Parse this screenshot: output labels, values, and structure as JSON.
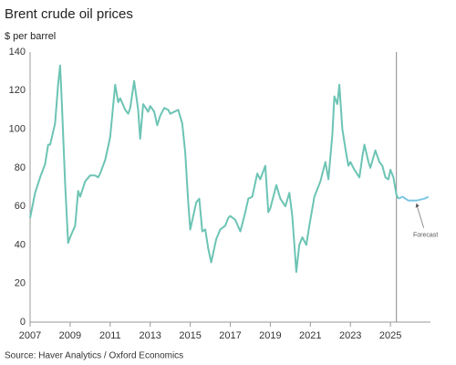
{
  "chart_data": {
    "type": "line",
    "title": "Brent crude oil prices",
    "subtitle": "$ per barrel",
    "source": "Source: Haver Analytics / Oxford Economics",
    "annotation": "Forecast",
    "xlim": [
      2007,
      2027
    ],
    "xticks": [
      2007,
      2009,
      2011,
      2013,
      2015,
      2017,
      2019,
      2021,
      2023,
      2025
    ],
    "ylim": [
      0,
      140
    ],
    "yticks": [
      0,
      20,
      40,
      60,
      80,
      100,
      120,
      140
    ],
    "grid": false,
    "vline_x": 2025.3,
    "series": [
      {
        "color": "#6cc4b4",
        "x": [
          2007.0,
          2007.25,
          2007.5,
          2007.75,
          2007.9,
          2008.0,
          2008.25,
          2008.4,
          2008.5,
          2008.58,
          2008.75,
          2008.9,
          2009.0,
          2009.25,
          2009.4,
          2009.5,
          2009.75,
          2010.0,
          2010.25,
          2010.4,
          2010.5,
          2010.75,
          2010.9,
          2011.0,
          2011.25,
          2011.4,
          2011.5,
          2011.75,
          2011.9,
          2012.0,
          2012.2,
          2012.4,
          2012.5,
          2012.65,
          2012.9,
          2013.0,
          2013.2,
          2013.35,
          2013.5,
          2013.7,
          2013.9,
          2014.0,
          2014.4,
          2014.6,
          2014.75,
          2014.9,
          2015.0,
          2015.3,
          2015.45,
          2015.6,
          2015.75,
          2015.9,
          2016.05,
          2016.3,
          2016.5,
          2016.75,
          2016.9,
          2017.0,
          2017.25,
          2017.5,
          2017.75,
          2017.9,
          2018.1,
          2018.35,
          2018.5,
          2018.75,
          2018.9,
          2019.0,
          2019.3,
          2019.5,
          2019.75,
          2019.95,
          2020.1,
          2020.3,
          2020.45,
          2020.6,
          2020.8,
          2020.95,
          2021.2,
          2021.5,
          2021.75,
          2021.9,
          2022.1,
          2022.2,
          2022.35,
          2022.45,
          2022.6,
          2022.75,
          2022.9,
          2023.0,
          2023.2,
          2023.45,
          2023.6,
          2023.7,
          2023.9,
          2024.0,
          2024.25,
          2024.45,
          2024.6,
          2024.75,
          2024.9,
          2025.0,
          2025.15,
          2025.3,
          2025.4
        ],
        "values": [
          54,
          67,
          75,
          82,
          92,
          92,
          103,
          123,
          133,
          115,
          72,
          41,
          44,
          50,
          68,
          65,
          73,
          76,
          76,
          75,
          77,
          84,
          91,
          96,
          123,
          114,
          116,
          110,
          108,
          111,
          125,
          110,
          95,
          113,
          109,
          112,
          109,
          102,
          107,
          111,
          110,
          108,
          110,
          103,
          88,
          62,
          48,
          62,
          64,
          47,
          48,
          38,
          31,
          43,
          48,
          50,
          54,
          55,
          53,
          47,
          57,
          64,
          65,
          77,
          74,
          81,
          57,
          59,
          71,
          64,
          60,
          67,
          55,
          26,
          40,
          44,
          40,
          50,
          65,
          73,
          83,
          74,
          97,
          117,
          113,
          123,
          100,
          90,
          81,
          83,
          79,
          75,
          86,
          92,
          83,
          80,
          89,
          83,
          81,
          75,
          74,
          79,
          75,
          66,
          64
        ]
      },
      {
        "color": "#7cc6e4",
        "x": [
          2025.4,
          2025.6,
          2025.9,
          2026.3,
          2026.7,
          2026.9
        ],
        "values": [
          64,
          65,
          63,
          63,
          64,
          65
        ]
      }
    ]
  }
}
